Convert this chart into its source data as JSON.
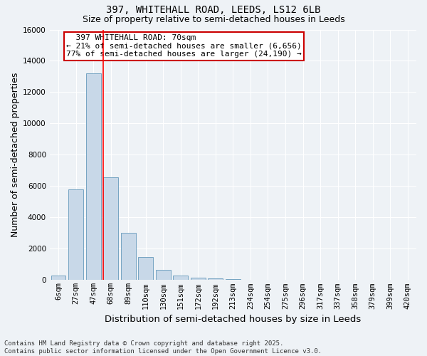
{
  "title": "397, WHITEHALL ROAD, LEEDS, LS12 6LB",
  "subtitle": "Size of property relative to semi-detached houses in Leeds",
  "xlabel": "Distribution of semi-detached houses by size in Leeds",
  "ylabel": "Number of semi-detached properties",
  "bar_color": "#c8d8e8",
  "bar_edge_color": "#6699bb",
  "categories": [
    "6sqm",
    "27sqm",
    "47sqm",
    "68sqm",
    "89sqm",
    "110sqm",
    "130sqm",
    "151sqm",
    "172sqm",
    "192sqm",
    "213sqm",
    "234sqm",
    "254sqm",
    "275sqm",
    "296sqm",
    "317sqm",
    "337sqm",
    "358sqm",
    "379sqm",
    "399sqm",
    "420sqm"
  ],
  "values": [
    300,
    5800,
    13200,
    6550,
    3000,
    1450,
    650,
    300,
    160,
    100,
    50,
    20,
    10,
    5,
    2,
    1,
    0,
    0,
    0,
    0,
    0
  ],
  "ylim": [
    0,
    16000
  ],
  "yticks": [
    0,
    2000,
    4000,
    6000,
    8000,
    10000,
    12000,
    14000,
    16000
  ],
  "property_label": "397 WHITEHALL ROAD: 70sqm",
  "pct_smaller": 21,
  "pct_larger": 77,
  "n_smaller": 6656,
  "n_larger": 24190,
  "annotation_box_color": "#cc0000",
  "red_line_index": 3,
  "footer_line1": "Contains HM Land Registry data © Crown copyright and database right 2025.",
  "footer_line2": "Contains public sector information licensed under the Open Government Licence v3.0.",
  "bg_color": "#eef2f6",
  "grid_color": "#ffffff",
  "title_fontsize": 10,
  "subtitle_fontsize": 9,
  "axis_label_fontsize": 9,
  "tick_fontsize": 7.5,
  "annot_fontsize": 8,
  "footer_fontsize": 6.5
}
